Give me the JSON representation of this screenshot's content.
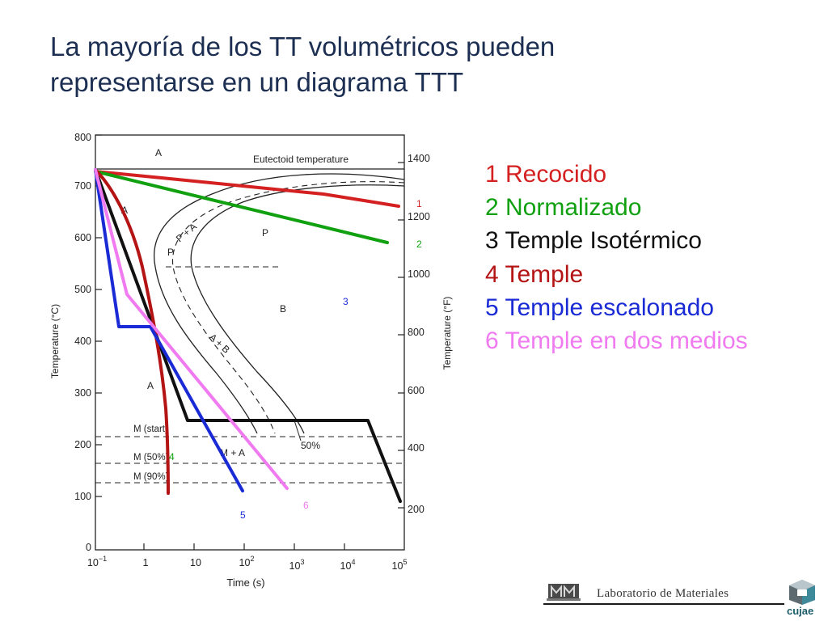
{
  "slide": {
    "title_line1": "La mayoría de los TT volumétricos pueden",
    "title_line2": "representarse en un diagrama TTT"
  },
  "legend": [
    {
      "text": "1 Recocido",
      "color": "#d42020"
    },
    {
      "text": "2 Normalizado",
      "color": "#10a010"
    },
    {
      "text": "3 Temple Isotérmico",
      "color": "#111111"
    },
    {
      "text": "4 Temple",
      "color": "#b41414"
    },
    {
      "text": "5 Temple escalonado",
      "color": "#1a2bd6"
    },
    {
      "text": "6  Temple en dos medios",
      "color": "#f07af0"
    }
  ],
  "diagram": {
    "left_axis_label": "Temperature (°C)",
    "right_axis_label": "Temperature (°F)",
    "x_axis_label": "Time (s)",
    "left_ticks": [
      "800",
      "700",
      "600",
      "500",
      "400",
      "300",
      "200",
      "100",
      "0"
    ],
    "right_ticks": [
      "1400",
      "1200",
      "1000",
      "800",
      "600",
      "400",
      "200"
    ],
    "x_ticks": [
      {
        "base": "10",
        "exp": "−1"
      },
      {
        "base": "1",
        "exp": ""
      },
      {
        "base": "10",
        "exp": ""
      },
      {
        "base": "10",
        "exp": "2"
      },
      {
        "base": "10",
        "exp": "3"
      },
      {
        "base": "10",
        "exp": "4"
      },
      {
        "base": "10",
        "exp": "5"
      }
    ],
    "region_labels": {
      "a_top": "A",
      "eutectoid": "Eutectoid temperature",
      "a_left": "A",
      "p_plus_a": "P + A",
      "p_left": "P",
      "p_right": "P",
      "b": "B",
      "a_plus_b": "A + B",
      "a_low": "A",
      "m_start": "M (start)",
      "m_50": "M (50%)",
      "m_90": "M (90%)",
      "m_plus_a": "M + A",
      "fifty_percent": "50%"
    },
    "curve_labels": {
      "c1": "1",
      "c2": "2",
      "c3": "3",
      "c4": "4",
      "c5": "5",
      "c6": "6"
    }
  },
  "footer": {
    "lab_name": "Laboratorio de Materiales",
    "university": "cujae"
  }
}
